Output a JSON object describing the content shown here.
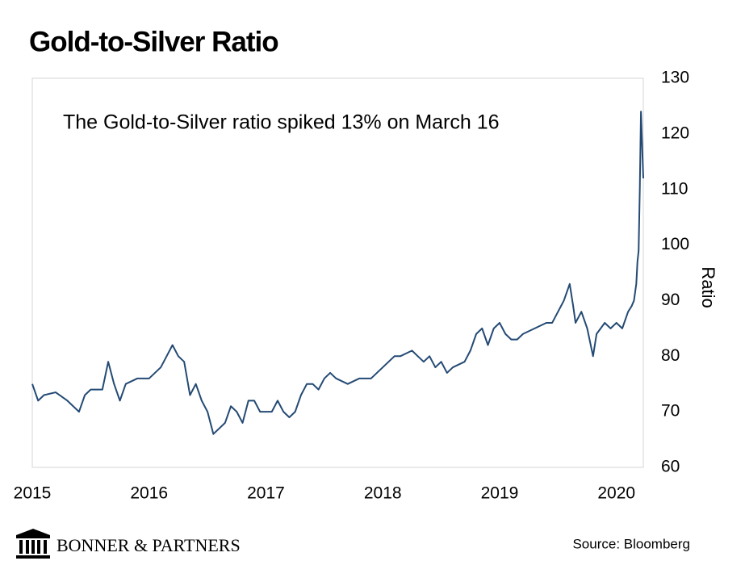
{
  "chart_data": {
    "type": "line",
    "title": "Gold-to-Silver Ratio",
    "annotation": "The Gold-to-Silver ratio spiked 13% on March 16",
    "y_label": "Ratio",
    "source": "Source: Bloomberg",
    "brand": "BONNER & PARTNERS",
    "xlim": [
      2015,
      2020.23
    ],
    "xticks": [
      2015,
      2016,
      2017,
      2018,
      2019,
      2020
    ],
    "ylim": [
      60,
      130
    ],
    "yticks": [
      60,
      70,
      80,
      90,
      100,
      110,
      120,
      130
    ],
    "y_axis_side": "right",
    "grid": false,
    "series": [
      {
        "name": "Gold-to-Silver Ratio",
        "color": "#244a74",
        "x": [
          2015.0,
          2015.05,
          2015.1,
          2015.2,
          2015.3,
          2015.4,
          2015.45,
          2015.5,
          2015.6,
          2015.65,
          2015.7,
          2015.75,
          2015.8,
          2015.9,
          2016.0,
          2016.1,
          2016.15,
          2016.2,
          2016.25,
          2016.3,
          2016.35,
          2016.4,
          2016.45,
          2016.5,
          2016.55,
          2016.6,
          2016.65,
          2016.7,
          2016.75,
          2016.8,
          2016.85,
          2016.9,
          2016.95,
          2017.0,
          2017.05,
          2017.1,
          2017.15,
          2017.2,
          2017.25,
          2017.3,
          2017.35,
          2017.4,
          2017.45,
          2017.5,
          2017.55,
          2017.6,
          2017.7,
          2017.8,
          2017.9,
          2018.0,
          2018.05,
          2018.1,
          2018.15,
          2018.25,
          2018.3,
          2018.35,
          2018.4,
          2018.45,
          2018.5,
          2018.55,
          2018.6,
          2018.7,
          2018.75,
          2018.8,
          2018.85,
          2018.9,
          2018.95,
          2019.0,
          2019.05,
          2019.1,
          2019.15,
          2019.2,
          2019.3,
          2019.4,
          2019.45,
          2019.5,
          2019.55,
          2019.6,
          2019.63,
          2019.65,
          2019.7,
          2019.75,
          2019.8,
          2019.83,
          2019.9,
          2019.95,
          2020.0,
          2020.05,
          2020.1,
          2020.13,
          2020.15,
          2020.17,
          2020.18,
          2020.19,
          2020.2,
          2020.21,
          2020.22,
          2020.23
        ],
        "values": [
          75,
          72,
          73,
          73.5,
          72,
          70,
          73,
          74,
          74,
          79,
          75,
          72,
          75,
          76,
          76,
          78,
          80,
          82,
          80,
          79,
          73,
          75,
          72,
          70,
          66,
          67,
          68,
          71,
          70,
          68,
          72,
          72,
          70,
          70,
          70,
          72,
          70,
          69,
          70,
          73,
          75,
          75,
          74,
          76,
          77,
          76,
          75,
          76,
          76,
          78,
          79,
          80,
          80,
          81,
          80,
          79,
          80,
          78,
          79,
          77,
          78,
          79,
          81,
          84,
          85,
          82,
          85,
          86,
          84,
          83,
          83,
          84,
          85,
          86,
          86,
          88,
          90,
          93,
          89,
          86,
          88,
          85,
          80,
          84,
          86,
          85,
          86,
          85,
          88,
          89,
          90,
          93,
          97,
          99,
          110,
          124,
          118,
          112
        ]
      }
    ]
  }
}
